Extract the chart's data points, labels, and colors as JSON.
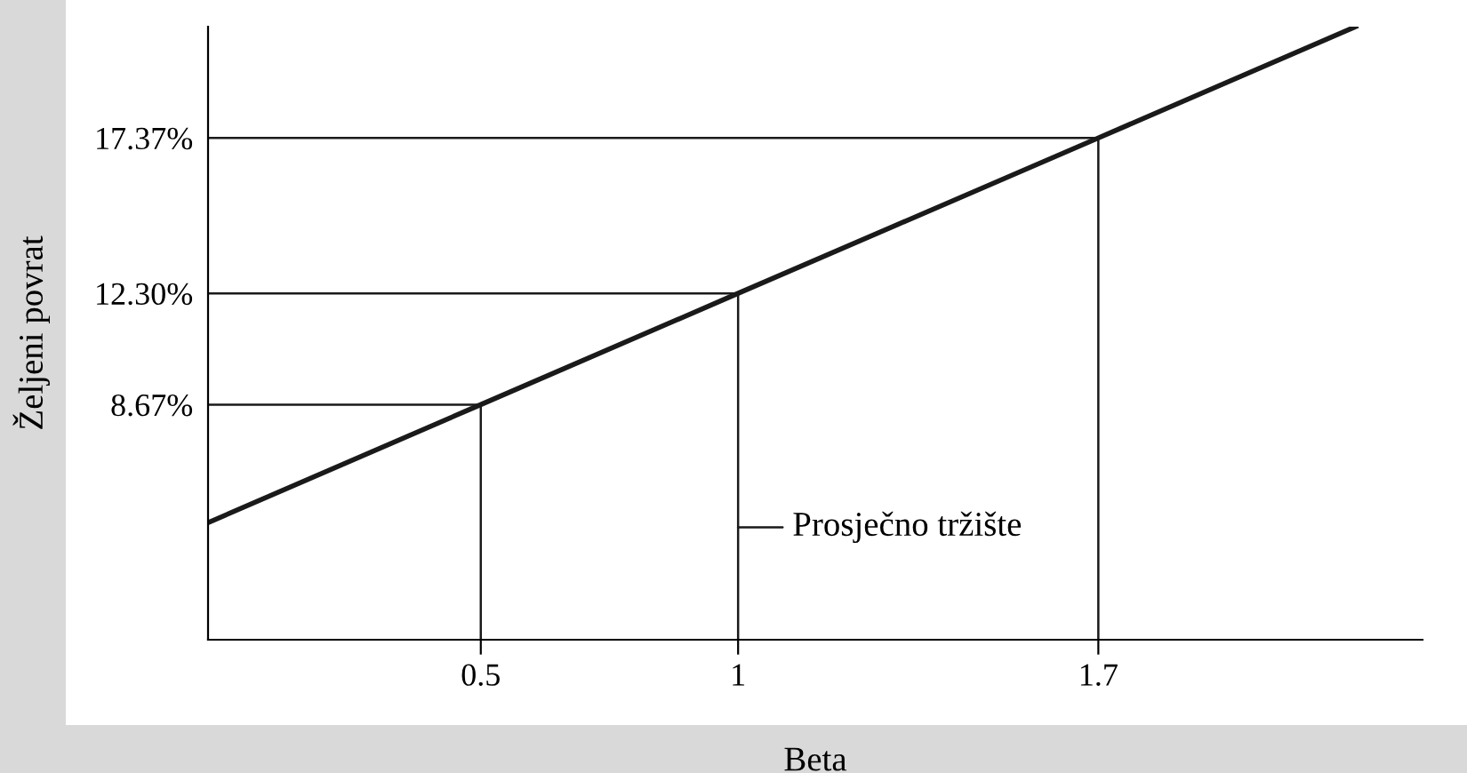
{
  "chart_data": {
    "type": "line",
    "xlabel": "Beta",
    "ylabel": "Željeni povrat",
    "xlim": [
      -0.03,
      2.33
    ],
    "ylim": [
      1,
      21
    ],
    "xticks": [
      0.5,
      1,
      1.7
    ],
    "yticks": [
      {
        "value": 8.67,
        "label": "8.67%"
      },
      {
        "value": 12.3,
        "label": "12.30%"
      },
      {
        "value": 17.37,
        "label": "17.37%"
      }
    ],
    "series": [
      {
        "color": "#1a1a1a",
        "x": [
          -0.03,
          0.5,
          1,
          1.7,
          2.2
        ],
        "values": [
          4.82,
          8.67,
          12.3,
          17.37,
          21
        ]
      },
      {
        "color": "#1a1a1a",
        "x": [
          -0.03,
          0.5,
          0.5
        ],
        "values": [
          8.67,
          8.67,
          1
        ]
      },
      {
        "color": "#1a1a1a",
        "x": [
          -0.03,
          1,
          1
        ],
        "values": [
          12.3,
          12.3,
          1
        ]
      },
      {
        "color": "#1a1a1a",
        "x": [
          -0.03,
          1.7,
          1.7
        ],
        "values": [
          17.37,
          17.37,
          1
        ]
      }
    ],
    "annotations": [
      {
        "text": "Prosječno tržište",
        "x": 1,
        "y": 4.67
      }
    ],
    "grid": false,
    "marker": "none",
    "line_style": "solid"
  }
}
